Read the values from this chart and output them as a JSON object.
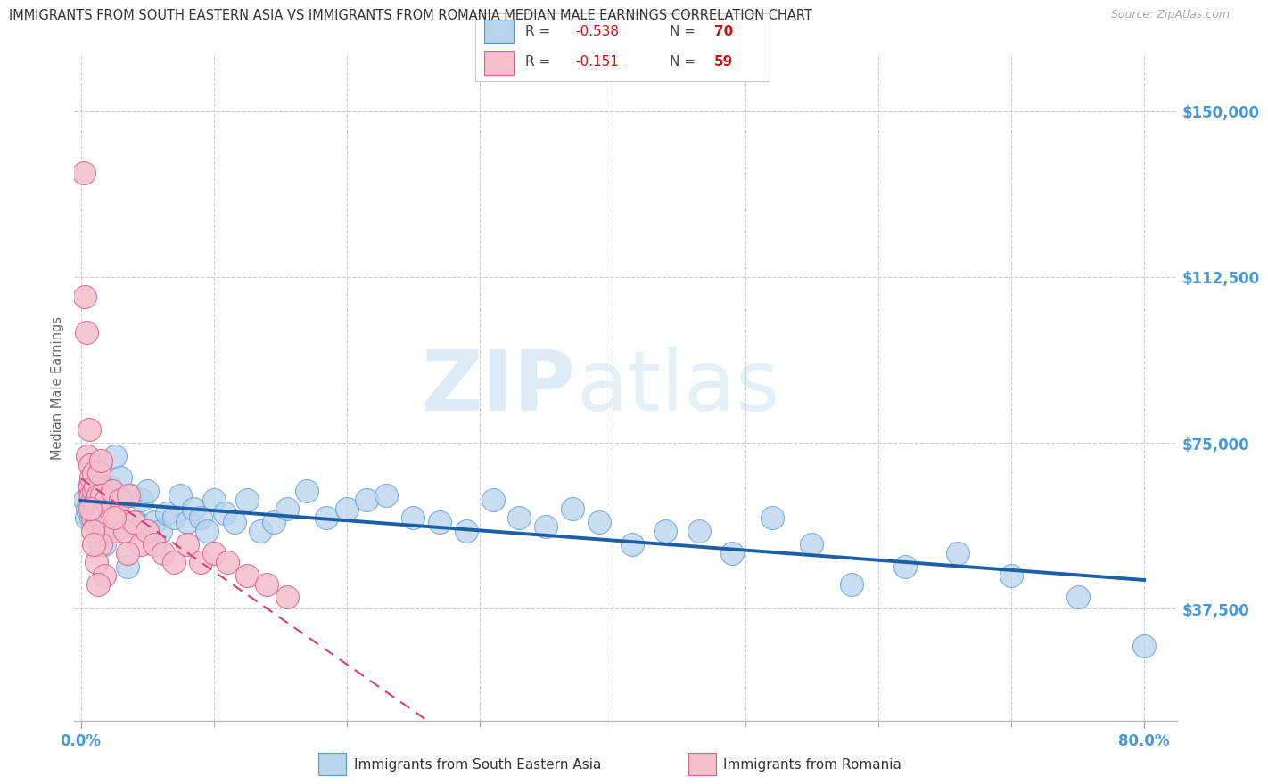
{
  "title": "IMMIGRANTS FROM SOUTH EASTERN ASIA VS IMMIGRANTS FROM ROMANIA MEDIAN MALE EARNINGS CORRELATION CHART",
  "source": "Source: ZipAtlas.com",
  "ylabel": "Median Male Earnings",
  "ytick_labels": [
    "$37,500",
    "$75,000",
    "$112,500",
    "$150,000"
  ],
  "ytick_values": [
    37500,
    75000,
    112500,
    150000
  ],
  "ylim": [
    12000,
    163000
  ],
  "xlim": [
    -0.005,
    0.825
  ],
  "sea_r": "-0.538",
  "sea_n": "70",
  "romania_r": "-0.151",
  "romania_n": "59",
  "sea_color": "#b8d4ec",
  "sea_edge_color": "#5b9bd5",
  "romania_color": "#f5bfcc",
  "romania_edge_color": "#d96090",
  "trend_sea_color": "#1a5fa8",
  "trend_romania_color": "#d44070",
  "background_color": "#ffffff",
  "grid_color": "#cccccc",
  "title_color": "#333333",
  "axis_label_color": "#4499dd",
  "sea_points_x": [
    0.003,
    0.004,
    0.005,
    0.006,
    0.007,
    0.008,
    0.009,
    0.01,
    0.011,
    0.012,
    0.013,
    0.014,
    0.015,
    0.016,
    0.017,
    0.018,
    0.019,
    0.02,
    0.022,
    0.024,
    0.026,
    0.028,
    0.03,
    0.032,
    0.035,
    0.038,
    0.042,
    0.046,
    0.05,
    0.055,
    0.06,
    0.065,
    0.07,
    0.075,
    0.08,
    0.085,
    0.09,
    0.095,
    0.1,
    0.108,
    0.116,
    0.125,
    0.135,
    0.145,
    0.155,
    0.17,
    0.185,
    0.2,
    0.215,
    0.23,
    0.25,
    0.27,
    0.29,
    0.31,
    0.33,
    0.35,
    0.37,
    0.39,
    0.415,
    0.44,
    0.465,
    0.49,
    0.52,
    0.55,
    0.58,
    0.62,
    0.66,
    0.7,
    0.75,
    0.8
  ],
  "sea_points_y": [
    62000,
    58000,
    60000,
    65000,
    62000,
    58000,
    59000,
    64000,
    68000,
    61000,
    58000,
    55000,
    70000,
    63000,
    57000,
    52000,
    61000,
    63000,
    65000,
    58000,
    72000,
    58000,
    67000,
    56000,
    47000,
    63000,
    57000,
    62000,
    64000,
    57000,
    55000,
    59000,
    58000,
    63000,
    57000,
    60000,
    58000,
    55000,
    62000,
    59000,
    57000,
    62000,
    55000,
    57000,
    60000,
    64000,
    58000,
    60000,
    62000,
    63000,
    58000,
    57000,
    55000,
    62000,
    58000,
    56000,
    60000,
    57000,
    52000,
    55000,
    55000,
    50000,
    58000,
    52000,
    43000,
    47000,
    50000,
    45000,
    40000,
    29000
  ],
  "romania_points_x": [
    0.002,
    0.003,
    0.004,
    0.005,
    0.006,
    0.006,
    0.007,
    0.007,
    0.008,
    0.008,
    0.009,
    0.009,
    0.01,
    0.01,
    0.011,
    0.011,
    0.012,
    0.012,
    0.013,
    0.013,
    0.014,
    0.014,
    0.015,
    0.015,
    0.016,
    0.016,
    0.017,
    0.018,
    0.019,
    0.02,
    0.022,
    0.024,
    0.026,
    0.028,
    0.03,
    0.033,
    0.036,
    0.04,
    0.045,
    0.05,
    0.055,
    0.062,
    0.07,
    0.08,
    0.09,
    0.1,
    0.11,
    0.125,
    0.14,
    0.155,
    0.015,
    0.025,
    0.035,
    0.009,
    0.007,
    0.012,
    0.018,
    0.01,
    0.013
  ],
  "romania_points_y": [
    136000,
    108000,
    100000,
    72000,
    63000,
    78000,
    65000,
    70000,
    63000,
    67000,
    58000,
    62000,
    64000,
    68000,
    61000,
    65000,
    57000,
    62000,
    63000,
    58000,
    68000,
    60000,
    57000,
    71000,
    63000,
    58000,
    55000,
    60000,
    62000,
    57000,
    60000,
    64000,
    55000,
    58000,
    62000,
    55000,
    63000,
    57000,
    52000,
    55000,
    52000,
    50000,
    48000,
    52000,
    48000,
    50000,
    48000,
    45000,
    43000,
    40000,
    52000,
    58000,
    50000,
    55000,
    60000,
    48000,
    45000,
    52000,
    43000
  ]
}
